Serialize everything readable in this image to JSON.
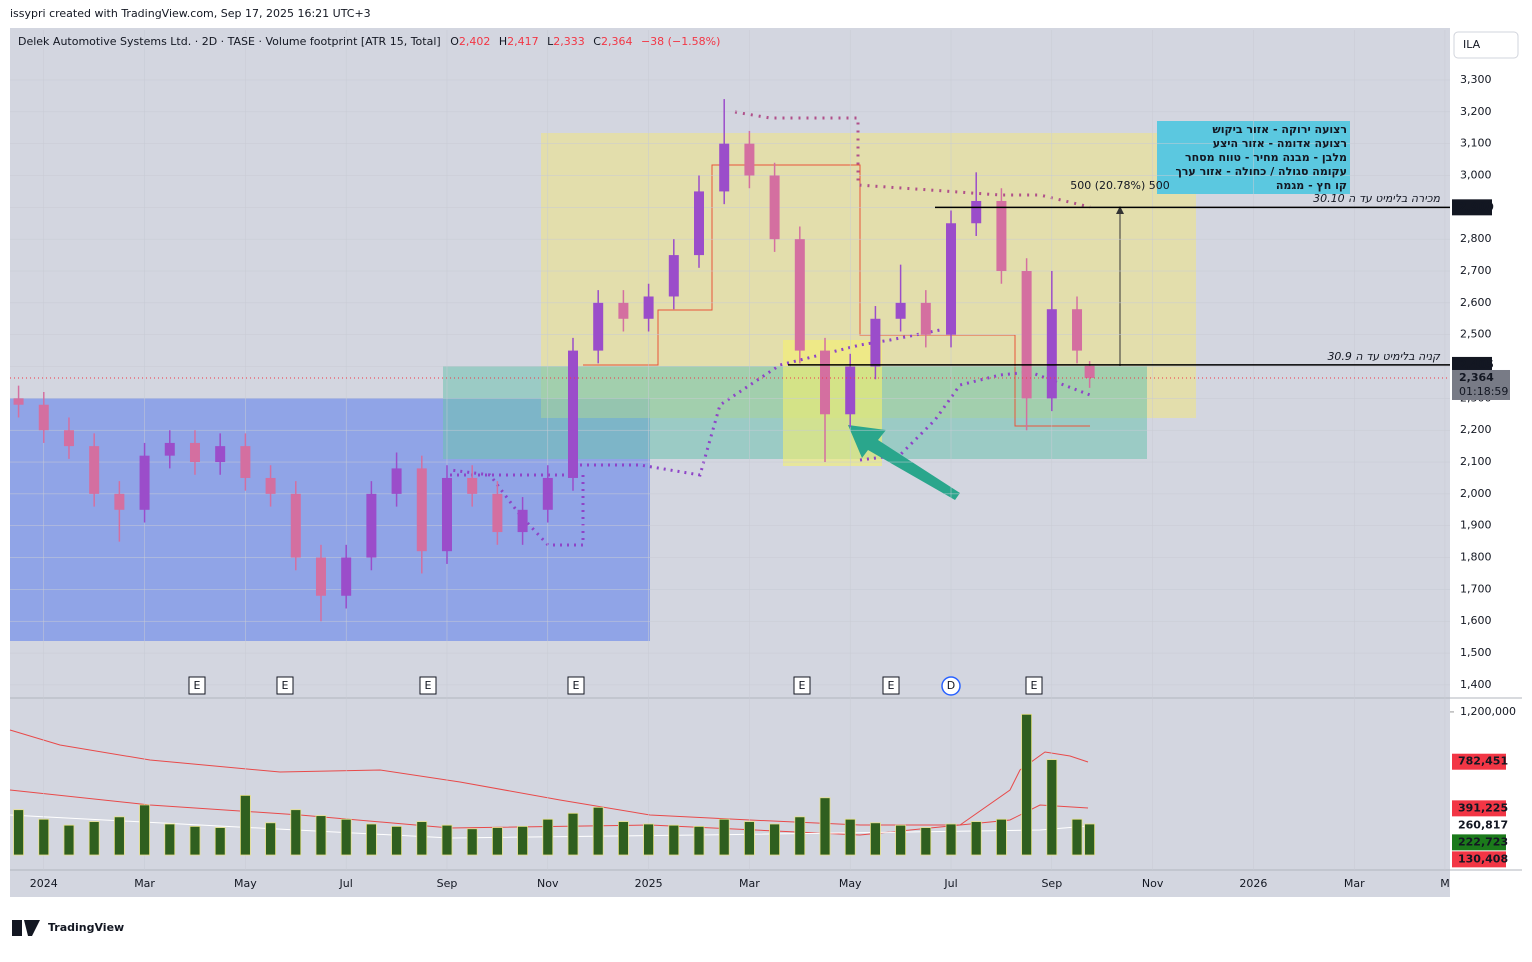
{
  "header": {
    "credit": "issypri created with TradingView.com, Sep 17, 2025 16:21 UTC+3",
    "logo": "TradingView",
    "currency": "ILA"
  },
  "legend": {
    "title": "Delek Automotive Systems Ltd. · 2D · TASE · Volume footprint [ATR 15, Total]",
    "fields": [
      {
        "key": "O",
        "value": 2402,
        "label": "2,402"
      },
      {
        "key": "H",
        "value": 2417,
        "label": "2,417"
      },
      {
        "key": "L",
        "value": 2333,
        "label": "2,333"
      },
      {
        "key": "C",
        "value": 2364,
        "label": "2,364"
      }
    ],
    "change": "−38 (−1.58%)"
  },
  "notes": {
    "legend_lines": [
      "רצועה ירוקה - אזור ביקוש",
      "רצועה אדומה - אזור היצע",
      "מלבן - מבנה מחיר - טווח מסחר",
      "עקומה סגולה / כחולה - אזור ערך",
      "קו חץ - מגמה"
    ],
    "sell": "מכירה בלימיט עד ה 30.10",
    "buy": "קניה בלימיט עד ה 30.9",
    "range": "500 (20.78%) 500"
  },
  "events": [
    "E",
    "E",
    "E",
    "E",
    "E",
    "E",
    "D",
    "E"
  ],
  "chart_data": {
    "type": "candlestick",
    "x": [
      -0.5,
      0,
      0.5,
      1,
      1.5,
      2,
      2.5,
      3,
      3.5,
      4,
      4.5,
      5,
      5.5,
      6,
      6.5,
      7,
      7.5,
      8,
      8.5,
      9,
      9.5,
      10,
      10.5,
      11,
      11.5,
      12,
      12.5,
      13,
      13.5,
      14,
      14.5,
      15,
      15.5,
      16,
      16.5,
      17,
      17.5,
      18,
      18.5,
      19,
      19.5,
      20,
      20.5,
      20.75
    ],
    "open": [
      2300,
      2280,
      2200,
      2150,
      2000,
      1950,
      2120,
      2160,
      2100,
      2150,
      2050,
      2000,
      1800,
      1680,
      1800,
      2000,
      2080,
      1820,
      2050,
      2000,
      1880,
      1950,
      2050,
      2450,
      2600,
      2550,
      2620,
      2750,
      2950,
      3100,
      3000,
      2800,
      2450,
      2250,
      2400,
      2550,
      2600,
      2500,
      2850,
      2920,
      2700,
      2300,
      2580,
      2402
    ],
    "high": [
      2340,
      2320,
      2240,
      2190,
      2040,
      2160,
      2200,
      2200,
      2190,
      2190,
      2090,
      2040,
      1840,
      1840,
      2040,
      2130,
      2120,
      2090,
      2090,
      2040,
      1990,
      2090,
      2490,
      2640,
      2640,
      2660,
      2800,
      3000,
      3240,
      3140,
      3040,
      2840,
      2490,
      2440,
      2590,
      2720,
      2640,
      2890,
      3010,
      2960,
      2740,
      2700,
      2620,
      2417
    ],
    "low": [
      2240,
      2160,
      2110,
      1960,
      1850,
      1910,
      2080,
      2060,
      2060,
      2010,
      1960,
      1760,
      1600,
      1640,
      1760,
      1960,
      1750,
      1780,
      1960,
      1840,
      1840,
      1910,
      2010,
      2410,
      2510,
      2510,
      2580,
      2710,
      2910,
      2960,
      2760,
      2410,
      2100,
      2210,
      2360,
      2510,
      2460,
      2460,
      2810,
      2660,
      2200,
      2260,
      2410,
      2333
    ],
    "close": [
      2280,
      2200,
      2150,
      2000,
      1950,
      2120,
      2160,
      2100,
      2150,
      2050,
      2000,
      1800,
      1680,
      1800,
      2000,
      2080,
      1820,
      2050,
      2000,
      1880,
      1950,
      2050,
      2450,
      2600,
      2550,
      2620,
      2750,
      2950,
      3100,
      3000,
      2800,
      2450,
      2250,
      2400,
      2550,
      2600,
      2500,
      2850,
      2920,
      2700,
      2300,
      2580,
      2450,
      2364
    ],
    "up_color": "#9b4dca",
    "down_color": "#d46fa0",
    "xlim": [
      -0.67,
      27.9
    ],
    "xticks": [
      {
        "value": 0,
        "label": "2024"
      },
      {
        "value": 2,
        "label": "Mar"
      },
      {
        "value": 4,
        "label": "May"
      },
      {
        "value": 6,
        "label": "Jul"
      },
      {
        "value": 8,
        "label": "Sep"
      },
      {
        "value": 10,
        "label": "Nov"
      },
      {
        "value": 12,
        "label": "2025"
      },
      {
        "value": 14,
        "label": "Mar"
      },
      {
        "value": 16,
        "label": "May"
      },
      {
        "value": 18,
        "label": "Jul"
      },
      {
        "value": 20,
        "label": "Sep"
      },
      {
        "value": 22,
        "label": "Nov"
      },
      {
        "value": 24,
        "label": "2026"
      },
      {
        "value": 26,
        "label": "Mar"
      },
      {
        "value": 27.8,
        "label": "M"
      }
    ],
    "ylim": [
      1362,
      3457
    ],
    "yticks": [
      {
        "value": 1400,
        "label": "1,400"
      },
      {
        "value": 1500,
        "label": "1,500"
      },
      {
        "value": 1600,
        "label": "1,600"
      },
      {
        "value": 1700,
        "label": "1,700"
      },
      {
        "value": 1800,
        "label": "1,800"
      },
      {
        "value": 1900,
        "label": "1,900"
      },
      {
        "value": 2000,
        "label": "2,000"
      },
      {
        "value": 2100,
        "label": "2,100"
      },
      {
        "value": 2200,
        "label": "2,200"
      },
      {
        "value": 2300,
        "label": "2,300"
      },
      {
        "value": 2400,
        "label": "2,400"
      },
      {
        "value": 2500,
        "label": "2,500"
      },
      {
        "value": 2600,
        "label": "2,600"
      },
      {
        "value": 2700,
        "label": "2,700"
      },
      {
        "value": 2800,
        "label": "2,800"
      },
      {
        "value": 2900,
        "label": "2,900"
      },
      {
        "value": 3000,
        "label": "3,000"
      },
      {
        "value": 3100,
        "label": "3,100"
      },
      {
        "value": 3200,
        "label": "3,200"
      },
      {
        "value": 3300,
        "label": "3,300"
      }
    ],
    "levels": [
      {
        "value": 2900,
        "label": "2,900"
      },
      {
        "value": 2405,
        "label": "2,405"
      }
    ],
    "last": {
      "value": 2364,
      "label": "2,364",
      "countdown": "01:18:59"
    },
    "volume": {
      "values": [
        380000,
        300000,
        250000,
        280000,
        320000,
        420000,
        260000,
        240000,
        230000,
        500000,
        270000,
        380000,
        330000,
        300000,
        260000,
        240000,
        280000,
        250000,
        220000,
        230000,
        240000,
        300000,
        350000,
        400000,
        280000,
        260000,
        250000,
        240000,
        300000,
        280000,
        260000,
        320000,
        480000,
        300000,
        270000,
        250000,
        230000,
        260000,
        280000,
        300000,
        1180000,
        800000,
        300000,
        260000
      ],
      "color": "#2f5f1f",
      "ylim": [
        0,
        1300000
      ],
      "yticks": [
        {
          "value": 1200000,
          "label": "1,200,000"
        }
      ],
      "markers": [
        {
          "value": 782451,
          "label": "782,451",
          "color": "#f23645"
        },
        {
          "value": 391225,
          "label": "391,225",
          "color": "#f23645"
        },
        {
          "value": 260817,
          "label": "260,817",
          "color": "#ffffff"
        },
        {
          "value": 222723,
          "label": "222,723",
          "color": "#1b7a1b"
        },
        {
          "value": 130408,
          "label": "130,408",
          "color": "#f23645"
        }
      ]
    }
  }
}
